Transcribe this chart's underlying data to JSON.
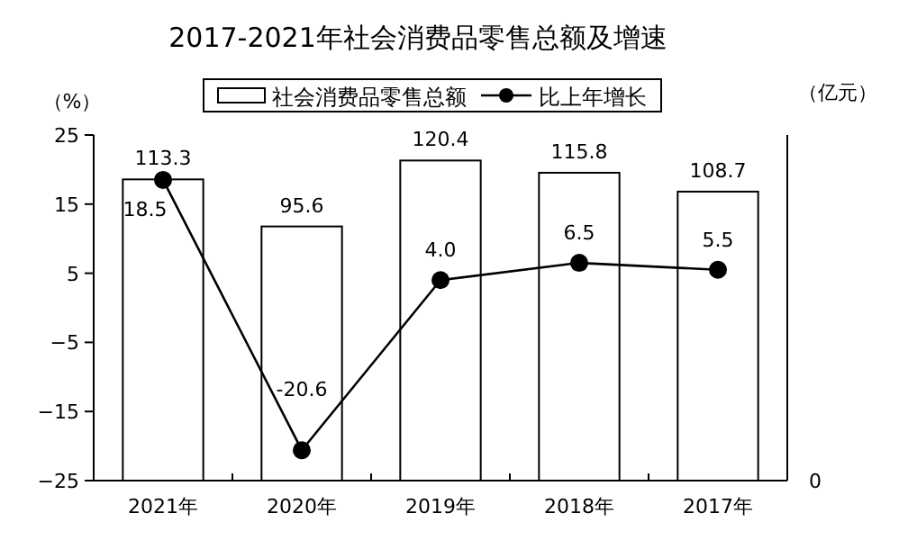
{
  "chart_data": {
    "type": "bar",
    "title": "2017-2021年社会消费品零售总额及增速",
    "ylabel": "（%）",
    "y2label": "（亿元）",
    "categories": [
      "2021年",
      "2020年",
      "2019年",
      "2018年",
      "2017年"
    ],
    "series": [
      {
        "name": "社会消费品零售总额",
        "color": "#ffffff",
        "axis": "y2",
        "values": [
          113.3,
          95.6,
          120.4,
          115.8,
          108.7
        ],
        "value_labels": [
          "113.3",
          "95.6",
          "120.4",
          "115.8",
          "108.7"
        ]
      },
      {
        "name": "比上年增长",
        "type": "line",
        "color": "#000000",
        "axis": "y",
        "values": [
          18.5,
          -20.6,
          4.0,
          6.5,
          5.5
        ],
        "value_labels": [
          "18.5",
          "-20.6",
          "4.0",
          "6.5",
          "5.5"
        ]
      }
    ],
    "ylim": [
      -25,
      25
    ],
    "yticks": [
      -25,
      -15,
      -5,
      5,
      15,
      25
    ],
    "y2lim": [
      0,
      130
    ],
    "annotations": [
      "0"
    ],
    "legend": "top",
    "marker": "circle",
    "grid": false
  }
}
